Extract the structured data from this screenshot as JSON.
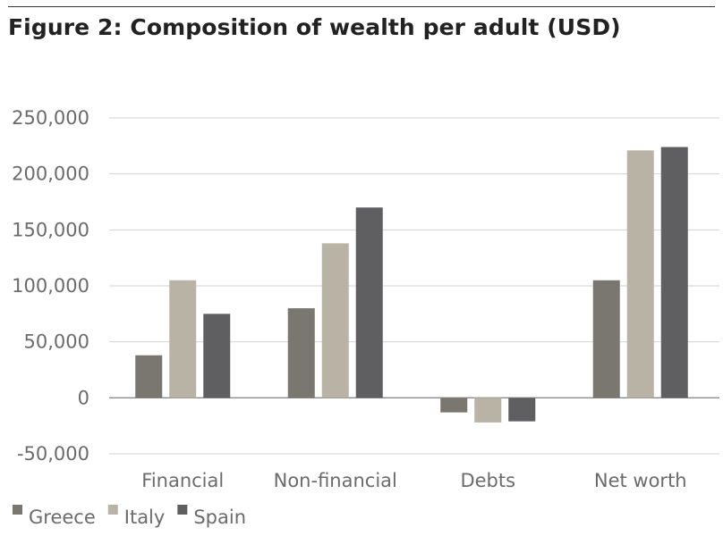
{
  "title": "Figure 2: Composition of wealth per adult (USD)",
  "chart_data": {
    "type": "bar",
    "categories": [
      "Financial",
      "Non-financial",
      "Debts",
      "Net worth"
    ],
    "series": [
      {
        "name": "Greece",
        "color": "#7a7670",
        "values": [
          38000,
          80000,
          -13000,
          105000
        ]
      },
      {
        "name": "Italy",
        "color": "#b8b3a5",
        "values": [
          105000,
          138000,
          -22000,
          221000
        ]
      },
      {
        "name": "Spain",
        "color": "#5f5e60",
        "values": [
          75000,
          170000,
          -21000,
          224000
        ]
      }
    ],
    "ylim": [
      -50000,
      250000
    ],
    "yticks": [
      250000,
      200000,
      150000,
      100000,
      50000,
      0,
      -50000
    ],
    "ytick_labels": [
      "250,000",
      "200,000",
      "150,000",
      "100,000",
      "50,000",
      "0",
      "-50,000"
    ],
    "grid": true,
    "legend_position": "bottom-left",
    "xlabel": "",
    "ylabel": ""
  }
}
